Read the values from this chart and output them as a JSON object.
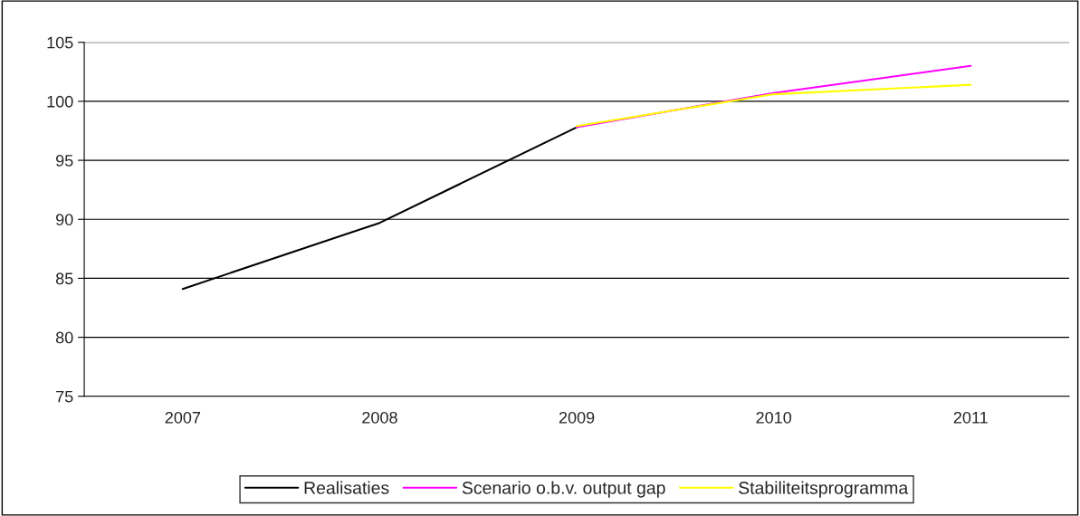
{
  "chart_data": {
    "type": "line",
    "categories": [
      "2007",
      "2008",
      "2009",
      "2010",
      "2011"
    ],
    "series": [
      {
        "name": "Realisaties",
        "color": "#000000",
        "values": [
          84.1,
          89.7,
          97.8,
          null,
          null
        ]
      },
      {
        "name": "Scenario o.b.v. output gap",
        "color": "#ff00ff",
        "values": [
          null,
          null,
          97.8,
          100.7,
          103.0
        ]
      },
      {
        "name": "Stabiliteitsprogramma",
        "color": "#ffff00",
        "values": [
          null,
          null,
          97.9,
          100.6,
          101.4
        ]
      }
    ],
    "ylim": [
      75,
      105
    ],
    "yticks": [
      75,
      80,
      85,
      90,
      95,
      100,
      105
    ],
    "grid": "y",
    "legend": "bottom",
    "marker": "none",
    "line_style": "solid"
  }
}
